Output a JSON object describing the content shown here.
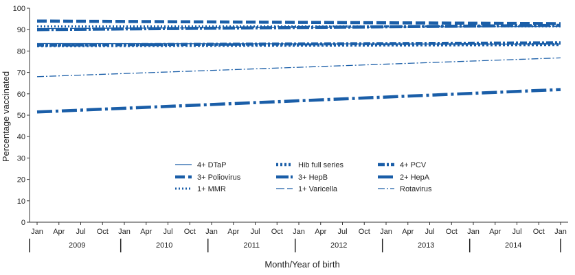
{
  "chart_data": {
    "type": "line",
    "title": "",
    "xlabel": "Month/Year of birth",
    "ylabel": "Percentage vaccinated",
    "ylim": [
      0,
      100
    ],
    "yticks": [
      "0",
      "10",
      "20",
      "30",
      "40",
      "50",
      "60",
      "70",
      "80",
      "90",
      "100"
    ],
    "month_ticks": [
      "Jan",
      "Apr",
      "Jul",
      "Oct",
      "Jan",
      "Apr",
      "Jul",
      "Oct",
      "Jan",
      "Apr",
      "Jul",
      "Oct",
      "Jan",
      "Apr",
      "Jul",
      "Oct",
      "Jan",
      "Apr",
      "Jul",
      "Oct",
      "Jan",
      "Apr",
      "Jul",
      "Oct",
      "Jan"
    ],
    "years": [
      "2009",
      "2010",
      "2011",
      "2012",
      "2013",
      "2014"
    ],
    "x_month_index": [
      0,
      72
    ],
    "series": [
      {
        "name": "4+ DTaP",
        "style": "solid",
        "color": "#1a5ea8",
        "x": [
          0,
          72
        ],
        "values": [
          83.5,
          83.2
        ]
      },
      {
        "name": "Hib full series",
        "style": "dotted-heavy",
        "color": "#1a5ea8",
        "x": [
          0,
          72
        ],
        "values": [
          82.5,
          83.0
        ]
      },
      {
        "name": "4+ PCV",
        "style": "dash-dot-heavy",
        "color": "#1a5ea8",
        "x": [
          0,
          72
        ],
        "values": [
          82.8,
          83.8
        ]
      },
      {
        "name": "3+ Poliovirus",
        "style": "dashed-heavy",
        "color": "#1a5ea8",
        "x": [
          0,
          72
        ],
        "values": [
          94.0,
          92.8
        ]
      },
      {
        "name": "3+ HepB",
        "style": "dash-dot-long-heavy",
        "color": "#1a5ea8",
        "x": [
          0,
          72
        ],
        "values": [
          90.0,
          92.0
        ]
      },
      {
        "name": "2+ HepA",
        "style": "long-dashed-heavy",
        "color": "#1a5ea8",
        "x": [
          0,
          72
        ],
        "values": [
          51.5,
          62.0
        ]
      },
      {
        "name": "1+ MMR",
        "style": "dotted",
        "color": "#1a5ea8",
        "x": [
          0,
          72
        ],
        "values": [
          91.5,
          91.5
        ]
      },
      {
        "name": "1+ Varicella",
        "style": "long-dash-thin",
        "color": "#1a5ea8",
        "x": [
          0,
          72
        ],
        "values": [
          90.5,
          91.5
        ]
      },
      {
        "name": "Rotavirus",
        "style": "dash-dot-thin",
        "color": "#1a5ea8",
        "x": [
          0,
          72
        ],
        "values": [
          68.0,
          76.8
        ]
      }
    ],
    "legend": {
      "placement": "center",
      "entries": [
        "4+ DTaP",
        "Hib full series",
        "4+ PCV",
        "3+ Poliovirus",
        "3+ HepB",
        "2+ HepA",
        "1+ MMR",
        "1+ Varicella",
        "Rotavirus"
      ]
    }
  }
}
